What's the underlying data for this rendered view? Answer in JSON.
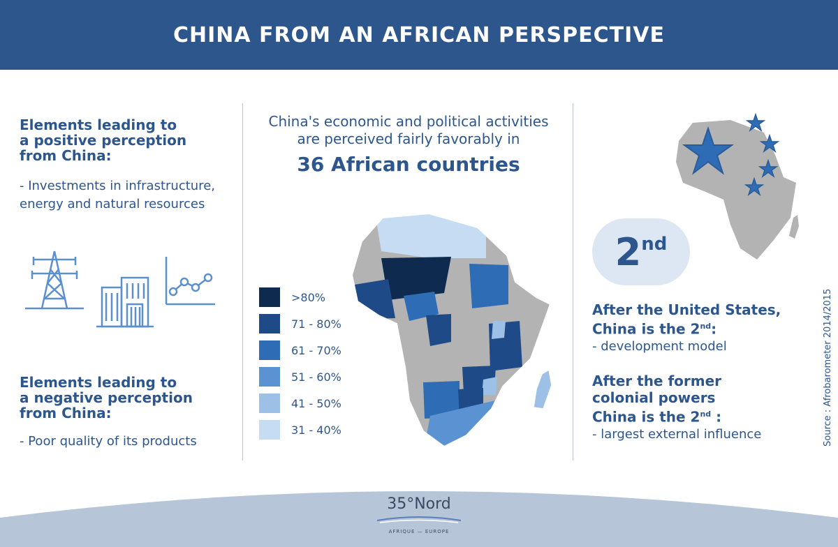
{
  "header": {
    "title": "CHINA FROM AN AFRICAN PERSPECTIVE"
  },
  "left": {
    "positive_title": "Elements leading to\na positive perception\nfrom China:",
    "positive_item": "- Investments in infrastructure,\nenergy and natural resources",
    "negative_title": "Elements leading to\na negative perception\nfrom China:",
    "negative_item": "- Poor quality of its products",
    "icons": [
      "power-pylon-icon",
      "office-buildings-icon",
      "line-chart-icon"
    ]
  },
  "center": {
    "line1": "China's economic and political activities",
    "line2": "are perceived fairly favorably in",
    "highlight": "36 African countries",
    "legend": [
      {
        "label": ">80%",
        "color": "#0f2a4f"
      },
      {
        "label": "71 - 80%",
        "color": "#1e4a87"
      },
      {
        "label": "61 - 70%",
        "color": "#2e6db5"
      },
      {
        "label": "51 - 60%",
        "color": "#5a92d2"
      },
      {
        "label": "41 - 50%",
        "color": "#9cc0e6"
      },
      {
        "label": "31 - 40%",
        "color": "#c5dcf2"
      }
    ],
    "no_data_color": "#b3b3b3"
  },
  "right": {
    "rank_number": "2",
    "rank_suffix": "nd",
    "block1_title_a": "After the United States,",
    "block1_title_b": "China is the 2",
    "block1_title_sup": "nd",
    "block1_title_end": ":",
    "block1_item": "- development model",
    "block2_title_a": "After the former",
    "block2_title_b": "colonial powers",
    "block2_title_c": "China is the 2",
    "block2_title_sup": "nd",
    "block2_title_end": " :",
    "block2_item": "- largest external influence",
    "star_color": "#2e6db5",
    "map_color": "#b3b3b3"
  },
  "footer": {
    "logo_text": "35°Nord",
    "logo_subtitle": "AFRIQUE — EUROPE",
    "source": "Source : Afrobarometer 2014/2015",
    "arc_color": "#b7c5d9"
  }
}
